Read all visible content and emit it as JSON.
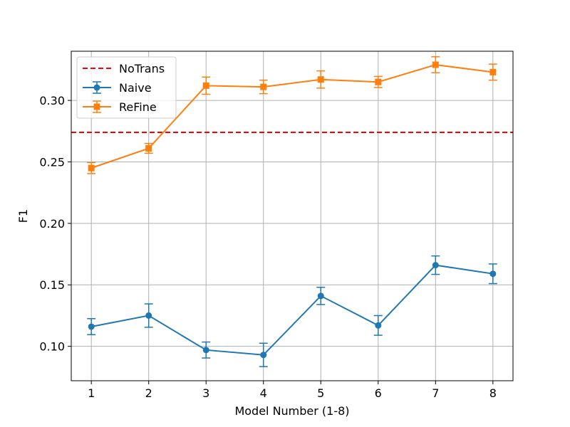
{
  "chart_data": {
    "type": "line",
    "title": "",
    "xlabel": "Model Number (1-8)",
    "ylabel": "F1",
    "x": [
      1,
      2,
      3,
      4,
      5,
      6,
      7,
      8
    ],
    "xlim": [
      0.65,
      8.35
    ],
    "ylim": [
      0.072,
      0.34
    ],
    "yticks": [
      "0.10",
      "0.15",
      "0.20",
      "0.25",
      "0.30"
    ],
    "ytick_values": [
      0.1,
      0.15,
      0.2,
      0.25,
      0.3
    ],
    "grid": true,
    "legend_position": "top-left",
    "series": [
      {
        "name": "Naive",
        "color": "#1f77b4",
        "marker": "circle",
        "values": [
          0.116,
          0.125,
          0.097,
          0.093,
          0.141,
          0.117,
          0.166,
          0.159
        ],
        "errors": [
          0.0065,
          0.0095,
          0.0065,
          0.0095,
          0.007,
          0.008,
          0.0075,
          0.008
        ]
      },
      {
        "name": "ReFine",
        "color": "#ff7f0e",
        "marker": "square",
        "values": [
          0.245,
          0.261,
          0.312,
          0.311,
          0.317,
          0.315,
          0.329,
          0.323
        ],
        "errors": [
          0.0045,
          0.004,
          0.007,
          0.0055,
          0.007,
          0.0045,
          0.0065,
          0.0065
        ]
      }
    ],
    "reference_lines": [
      {
        "name": "NoTrans",
        "value": 0.274,
        "color": "#ff0000",
        "style": "dashed"
      }
    ]
  }
}
